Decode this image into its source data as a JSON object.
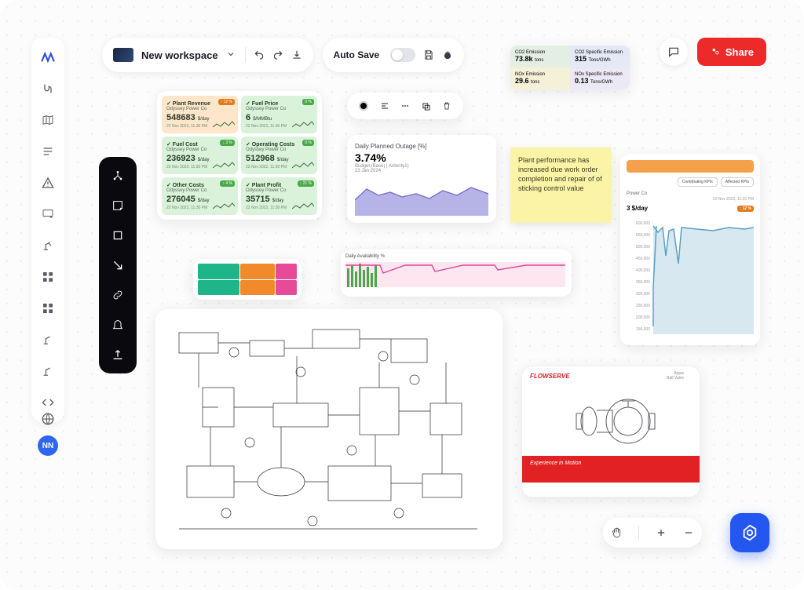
{
  "workspace": {
    "name": "New workspace"
  },
  "topbar": {
    "auto_save_label": "Auto Save"
  },
  "share": {
    "label": "Share"
  },
  "avatar": {
    "initials": "NN"
  },
  "colors": {
    "accent": "#2357f0",
    "danger": "#ec2a29",
    "sticky": "#fbf3a6",
    "kpi_green": "#d9f2d9",
    "kpi_orange": "#fde6c9"
  },
  "kpis": [
    {
      "title": "Plant Revenue",
      "sub": "Odyssey Power Co",
      "value": "548683",
      "unit": "$/day",
      "date": "22 Nov 2022, 11:30 PM",
      "badge": "↑ 12 %",
      "badge_kind": "up",
      "bg": "orange"
    },
    {
      "title": "Fuel Price",
      "sub": "Odyssey Power Co",
      "value": "6",
      "unit": "$/MMBtu",
      "date": "22 Nov 2022, 11:30 PM",
      "badge": "0 %",
      "badge_kind": "neutral",
      "bg": "green"
    },
    {
      "title": "Fuel Cost",
      "sub": "Odyssey Power Co",
      "value": "236923",
      "unit": "$/day",
      "date": "22 Nov 2022, 11:30 PM",
      "badge": "↓ 3 %",
      "badge_kind": "neutral",
      "bg": "green"
    },
    {
      "title": "Operating Costs",
      "sub": "Odyssey Power Co",
      "value": "512968",
      "unit": "$/day",
      "date": "22 Nov 2022, 11:30 PM",
      "badge": "0 %",
      "badge_kind": "neutral",
      "bg": "green"
    },
    {
      "title": "Other Costs",
      "sub": "Odyssey Power Co",
      "value": "276045",
      "unit": "$/day",
      "date": "22 Nov 2022, 11:30 PM",
      "badge": "↑ 4 %",
      "badge_kind": "neutral",
      "bg": "green"
    },
    {
      "title": "Plant Profit",
      "sub": "Odyssey Power Co",
      "value": "35715",
      "unit": "$/day",
      "date": "22 Nov 2022, 11:30 PM",
      "badge": "↑ 21 %",
      "badge_kind": "neutral",
      "bg": "green"
    }
  ],
  "emissions": [
    {
      "label": "CO2 Emission",
      "value": "73.8k",
      "unit": "tons",
      "cls": "em-green"
    },
    {
      "label": "CO2 Specific Emission",
      "value": "315",
      "unit": "Tons/GWh",
      "cls": "em-blue"
    },
    {
      "label": "NOx Emission",
      "value": "29.6",
      "unit": "tons",
      "cls": "em-yellow"
    },
    {
      "label": "NOx Specific Emission",
      "value": "0.13",
      "unit": "Tons/GWh",
      "cls": "em-lilac"
    }
  ],
  "outage": {
    "title": "Daily Planned Outage [%]",
    "value": "3.74%",
    "sub": "Budget (Base) | Anterity1)",
    "date": "23 Jan 2024",
    "area_color": "#b6b4e6",
    "line_color": "#7a6ed0"
  },
  "sticky": {
    "text": "Plant performance has increased due work order completion and repair of of sticking control value"
  },
  "treemap": {
    "colors": [
      "#1fb58a",
      "#f08a2a",
      "#e84a9a",
      "#1fb58a",
      "#f08a2a",
      "#e84a9a"
    ]
  },
  "availability": {
    "title": "Daily Availability %",
    "bar_color": "#4aa84a",
    "line_color": "#d64a9a",
    "bg_band": "#fde6f0"
  },
  "trend": {
    "pill1": "Contributing KPIs",
    "pill2": "Affected KPIs",
    "meta": "Power Co",
    "date": "22 Nov 2022, 11:30 PM",
    "kpi": "3 $/day",
    "badge": "↑ 12 %",
    "yticks": [
      "600,000",
      "550,000",
      "500,000",
      "450,000",
      "400,000",
      "350,000",
      "300,000",
      "250,000",
      "200,000",
      "150,000"
    ],
    "line_color": "#5aa0c4",
    "fill_color": "#d8e8f0"
  },
  "flowserve": {
    "brand": "FLOWSERVE",
    "meta1": "Atype",
    "meta2": "Ball Valve",
    "footer": "Experience in Motion"
  }
}
